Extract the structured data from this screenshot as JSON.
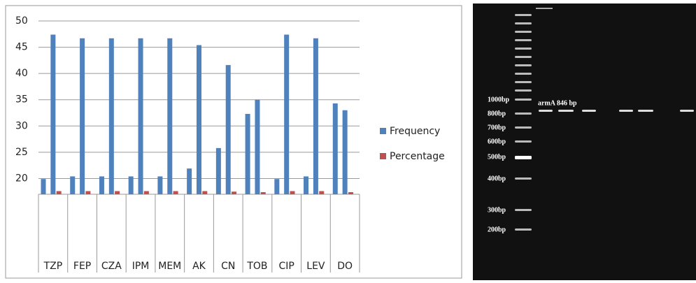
{
  "chart_data": {
    "type": "bar",
    "categories": [
      "TZP",
      "FEP",
      "CZA",
      "IPM",
      "MEM",
      "AK",
      "CN",
      "TOB",
      "CIP",
      "LEV",
      "DO"
    ],
    "series": [
      {
        "color": "#4f81bd",
        "values": [
          19.9,
          20.4,
          20.4,
          20.4,
          20.4,
          21.9,
          25.8,
          32.3,
          19.9,
          20.4,
          34.3
        ]
      },
      {
        "name": "Frequency",
        "color": "#4f81bd",
        "values": [
          47.4,
          46.7,
          46.7,
          46.7,
          46.7,
          45.4,
          41.6,
          35,
          47.4,
          46.7,
          33
        ]
      },
      {
        "name": "Percentage",
        "color": "#c0504d",
        "values": [
          17.6,
          17.6,
          17.6,
          17.6,
          17.6,
          17.6,
          17.5,
          17.4,
          17.6,
          17.6,
          17.4
        ]
      }
    ],
    "ylim": [
      17,
      50
    ],
    "yticks": [
      20,
      25,
      30,
      35,
      40,
      45,
      50
    ],
    "grid": true,
    "legend": "right"
  },
  "gel": {
    "ladder_labels": [
      "1000bp",
      "800bp",
      "700bp",
      "600bp",
      "500bp",
      "400bp",
      "300bp",
      "200bp"
    ],
    "band_label": "armA 846  bp"
  }
}
